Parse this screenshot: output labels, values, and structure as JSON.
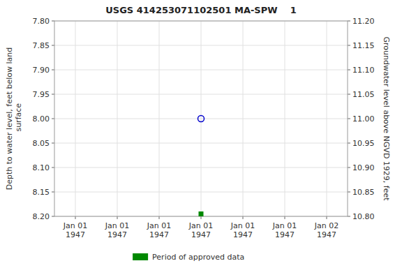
{
  "chart_data": {
    "type": "scatter",
    "title": "USGS 414253071102501 MA-SPW    1",
    "ylabel": "Depth to water level, feet below land\n surface",
    "y2label": "Groundwater level above NGVD 1929, feet",
    "categories": [
      "Jan 01\n1947",
      "Jan 01\n1947",
      "Jan 01\n1947",
      "Jan 01\n1947",
      "Jan 01\n1947",
      "Jan 01\n1947",
      "Jan 02\n1947"
    ],
    "ylim": [
      8.2,
      7.8
    ],
    "yticks": [
      {
        "value": 7.8,
        "label": "7.80"
      },
      {
        "value": 7.85,
        "label": "7.85"
      },
      {
        "value": 7.9,
        "label": "7.90"
      },
      {
        "value": 7.95,
        "label": "7.95"
      },
      {
        "value": 8.0,
        "label": "8.00"
      },
      {
        "value": 8.05,
        "label": "8.05"
      },
      {
        "value": 8.1,
        "label": "8.10"
      },
      {
        "value": 8.15,
        "label": "8.15"
      },
      {
        "value": 8.2,
        "label": "8.20"
      }
    ],
    "y2lim": [
      10.8,
      11.2
    ],
    "y2ticks": [
      {
        "value": 11.2,
        "label": "11.20"
      },
      {
        "value": 11.15,
        "label": "11.15"
      },
      {
        "value": 11.1,
        "label": "11.10"
      },
      {
        "value": 11.05,
        "label": "11.05"
      },
      {
        "value": 11.0,
        "label": "11.00"
      },
      {
        "value": 10.95,
        "label": "10.95"
      },
      {
        "value": 10.9,
        "label": "10.90"
      },
      {
        "value": 10.85,
        "label": "10.85"
      },
      {
        "value": 10.8,
        "label": "10.80"
      }
    ],
    "grid": true,
    "legend": "bottom",
    "series": [
      {
        "color": "#0000cc",
        "marker": "open-circle",
        "line_style": "none",
        "values": [
          null,
          null,
          null,
          8.0,
          null,
          null,
          null
        ]
      },
      {
        "name": "Period of approved data",
        "color": "#008800",
        "marker": "square",
        "line_style": "none",
        "values": [
          null,
          null,
          null,
          8.195,
          null,
          null,
          null
        ]
      }
    ]
  }
}
